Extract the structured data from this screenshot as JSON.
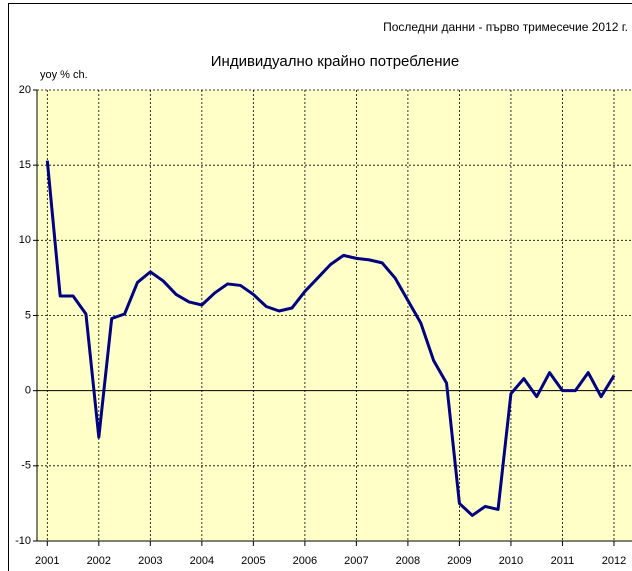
{
  "chart_data": {
    "type": "line",
    "title": "Индивидуално крайно потребление",
    "subtitle": "Последни данни - първо тримесечие 2012 г.",
    "y_label": "yoy % ch.",
    "color": "#000080",
    "x": [
      2001,
      2001.25,
      2001.5,
      2001.75,
      2002,
      2002.25,
      2002.5,
      2002.75,
      2003,
      2003.25,
      2003.5,
      2003.75,
      2004,
      2004.25,
      2004.5,
      2004.75,
      2005,
      2005.25,
      2005.5,
      2005.75,
      2006,
      2006.25,
      2006.5,
      2006.75,
      2007,
      2007.25,
      2007.5,
      2007.75,
      2008,
      2008.25,
      2008.5,
      2008.75,
      2009,
      2009.25,
      2009.5,
      2009.75,
      2010,
      2010.25,
      2010.5,
      2010.75,
      2011,
      2011.25,
      2011.5,
      2011.75,
      2012
    ],
    "values": [
      15.3,
      6.3,
      6.3,
      5.1,
      -3.1,
      4.8,
      5.1,
      7.2,
      7.9,
      7.3,
      6.4,
      5.9,
      5.7,
      6.5,
      7.1,
      7.0,
      6.4,
      5.6,
      5.3,
      5.5,
      6.6,
      7.5,
      8.4,
      9.0,
      8.8,
      8.7,
      8.5,
      7.5,
      6.0,
      4.5,
      2.0,
      0.5,
      -7.5,
      -8.3,
      -7.7,
      -7.9,
      -0.2,
      0.8,
      -0.4,
      1.2,
      0.0,
      0.0,
      1.2,
      -0.4,
      1.0
    ],
    "xlim": [
      2000.8,
      2012.35
    ],
    "xticks": [
      2001,
      2002,
      2003,
      2004,
      2005,
      2006,
      2007,
      2008,
      2009,
      2010,
      2011,
      2012
    ],
    "ylim": [
      -10,
      20
    ],
    "yticks": [
      -10,
      -5,
      0,
      5,
      10,
      15,
      20
    ],
    "grid": true
  }
}
